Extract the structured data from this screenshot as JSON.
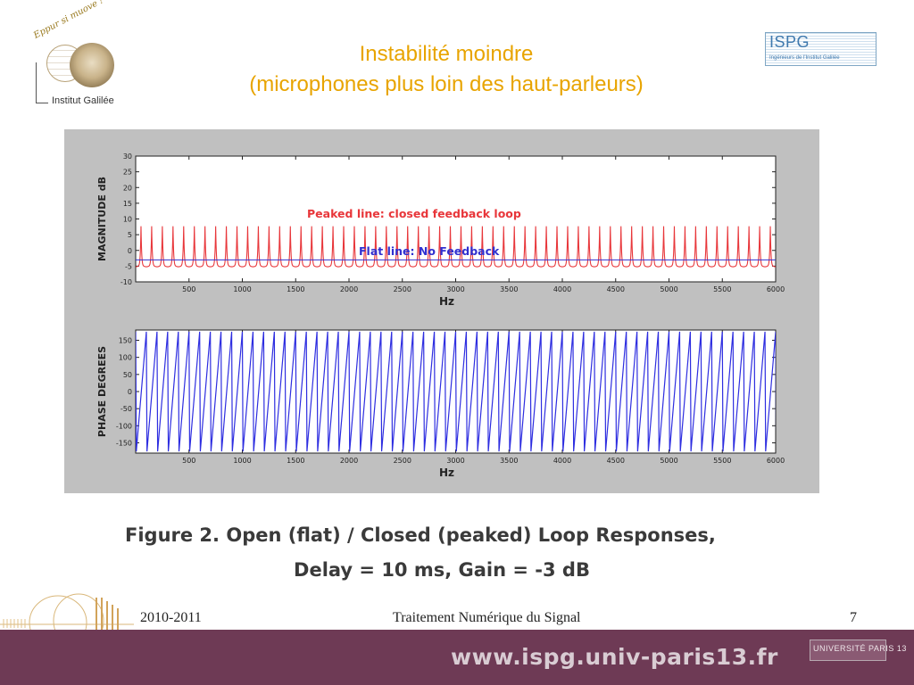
{
  "slide": {
    "title_line1": "Instabilité moindre",
    "title_line2": "(microphones plus loin des haut-parleurs)",
    "caption_line1": "Figure 2. Open (flat) / Closed (peaked) Loop Responses,",
    "caption_line2": "Delay = 10 ms, Gain = -3 dB"
  },
  "logos": {
    "left_motto": "Eppur si muove !",
    "left_name": "Institut Galilée",
    "right_big": "ISPG",
    "right_small": "Ingénieurs de l'Institut Galilée",
    "bottom_right": "UNIVERSITÉ PARIS 13"
  },
  "footer": {
    "year": "2010-2011",
    "course": "Traitement Numérique du Signal",
    "page": "7",
    "url": "www.ispg.univ-paris13.fr"
  },
  "colors": {
    "title": "#e8a400",
    "peaked": "#e8363a",
    "flat": "#3030d0",
    "phase": "#2e2ee0",
    "footer_bar": "#6e3a55"
  },
  "chart_data": [
    {
      "type": "line",
      "xlabel": "Hz",
      "ylabel": "MAGNITUDE dB",
      "xlim": [
        0,
        6000
      ],
      "ylim": [
        -10,
        30
      ],
      "xticks": [
        500,
        1000,
        1500,
        2000,
        2500,
        3000,
        3500,
        4000,
        4500,
        5000,
        5500,
        6000
      ],
      "yticks": [
        -10,
        -5,
        0,
        5,
        10,
        15,
        20,
        25,
        30
      ],
      "series": [
        {
          "name": "Peaked line: closed feedback loop",
          "period_hz": 100,
          "max_db": 7.5,
          "min_db": -6
        },
        {
          "name": "Flat line: No Feedback",
          "value_db": -3
        }
      ]
    },
    {
      "type": "line",
      "xlabel": "Hz",
      "ylabel": "PHASE DEGREES",
      "xlim": [
        0,
        6000
      ],
      "ylim": [
        -180,
        180
      ],
      "xticks": [
        500,
        1000,
        1500,
        2000,
        2500,
        3000,
        3500,
        4000,
        4500,
        5000,
        5500,
        6000
      ],
      "yticks": [
        -150,
        -100,
        -50,
        0,
        50,
        100,
        150
      ],
      "series": [
        {
          "period_hz": 100,
          "max_deg": 175,
          "min_deg": -175
        }
      ]
    }
  ]
}
